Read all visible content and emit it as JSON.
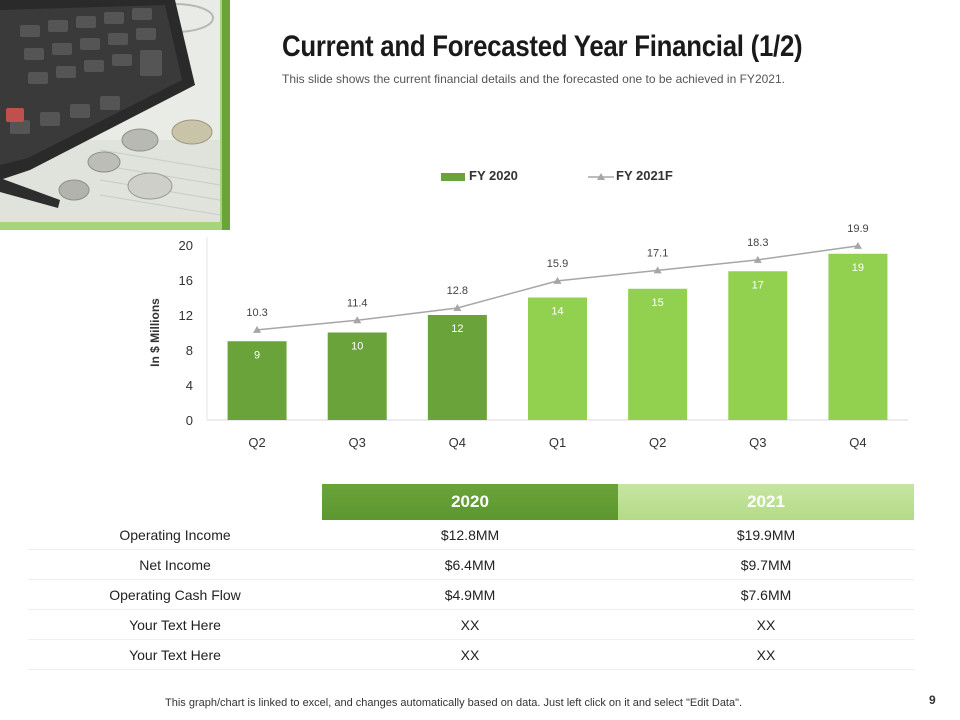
{
  "slide": {
    "title": "Current and Forecasted Year Financial (1/2)",
    "subtitle": "This slide shows the current financial details and the forecasted one to be achieved in FY2021.",
    "footer": "This graph/chart is linked to excel, and changes automatically based on data. Just left click on it and select \"Edit Data\".",
    "page_number": "9"
  },
  "chart_data": {
    "type": "bar",
    "categories": [
      "Q2",
      "Q3",
      "Q4",
      "Q1",
      "Q2",
      "Q3",
      "Q4"
    ],
    "series": [
      {
        "name": "FY 2020",
        "type": "bar",
        "values": [
          9,
          10,
          12,
          14,
          15,
          17,
          19
        ],
        "color": "#6aa33a",
        "forecast_color": "#92d050"
      },
      {
        "name": "FY 2021F",
        "type": "line",
        "values": [
          10.3,
          11.4,
          12.8,
          15.9,
          17.1,
          18.3,
          19.9
        ],
        "color": "#a6a6a6"
      }
    ],
    "bar_colors": [
      "#6aa33a",
      "#6aa33a",
      "#6aa33a",
      "#92d050",
      "#92d050",
      "#92d050",
      "#92d050"
    ],
    "ylabel": "In $ Millions",
    "yticks": [
      0,
      4,
      8,
      12,
      16,
      20
    ],
    "ylim": [
      0,
      20
    ],
    "legend_position": "top",
    "grid": false
  },
  "table": {
    "columns": [
      "",
      "2020",
      "2021"
    ],
    "rows": [
      [
        "Operating Income",
        "$12.8MM",
        "$19.9MM"
      ],
      [
        "Net Income",
        "$6.4MM",
        "$9.7MM"
      ],
      [
        "Operating Cash Flow",
        "$4.9MM",
        "$7.6MM"
      ],
      [
        "Your Text Here",
        "XX",
        "XX"
      ],
      [
        "Your Text Here",
        "XX",
        "XX"
      ]
    ]
  }
}
